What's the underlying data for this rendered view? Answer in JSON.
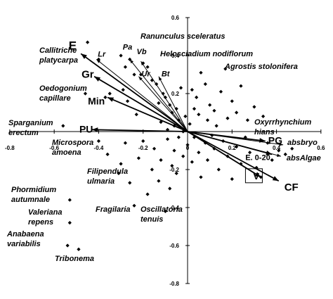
{
  "chart_data": {
    "type": "scatter",
    "title": "",
    "xlabel": "",
    "ylabel": "",
    "xlim": [
      -0.8,
      0.6
    ],
    "ylim": [
      -0.8,
      0.6
    ],
    "x_ticks": [
      "-0.8",
      "-0.6",
      "-0.4",
      "-0.2",
      "0",
      "0.2",
      "0.4",
      "0.6"
    ],
    "y_ticks": [
      "0.6",
      "0.4",
      "0.2",
      "-0.2",
      "-0.4",
      "-0.6",
      "-0.8"
    ],
    "vectors": [
      {
        "label": "E",
        "x": -0.48,
        "y": 0.41
      },
      {
        "label": "Gr",
        "x": -0.42,
        "y": 0.29
      },
      {
        "label": "Min",
        "x": -0.36,
        "y": 0.18
      },
      {
        "label": "PU",
        "x": -0.43,
        "y": 0.01
      },
      {
        "label": "Lr",
        "x": -0.41,
        "y": 0.38
      },
      {
        "label": "Pa",
        "x": -0.26,
        "y": 0.38
      },
      {
        "label": "Vb",
        "x": -0.21,
        "y": 0.37
      },
      {
        "label": "Ur",
        "x": -0.22,
        "y": 0.29
      },
      {
        "label": "Bt",
        "x": -0.13,
        "y": 0.29
      },
      {
        "label": "PG",
        "x": 0.35,
        "y": -0.05
      },
      {
        "label": "E. 0-20",
        "x": 0.38,
        "y": -0.12
      },
      {
        "label": "V",
        "x": 0.33,
        "y": -0.24
      },
      {
        "label": "CF",
        "x": 0.41,
        "y": -0.26
      },
      {
        "label": "absbryo",
        "x": 0.43,
        "y": -0.07
      },
      {
        "label": "absAlgae",
        "x": 0.42,
        "y": -0.13
      }
    ],
    "species": [
      {
        "label": "Ranunculus sceleratus",
        "x": -0.19,
        "y": 0.49
      },
      {
        "label": "Helosciadium nodiflorum",
        "x": -0.12,
        "y": 0.37
      },
      {
        "label": "Agrostis stolonifera",
        "x": 0.17,
        "y": 0.33
      },
      {
        "label": "Callitriche platycarpa",
        "x": -0.48,
        "y": 0.41
      },
      {
        "label": "Oedogonium capillare",
        "x": -0.46,
        "y": 0.2
      },
      {
        "label": "Sparganium erectum",
        "x": -0.56,
        "y": 0.03
      },
      {
        "label": "Microspora amoena",
        "x": -0.4,
        "y": -0.05
      },
      {
        "label": "Oxyrrhynchium hians",
        "x": 0.28,
        "y": 0.04
      },
      {
        "label": "Filipendula ulmaria",
        "x": -0.31,
        "y": -0.22
      },
      {
        "label": "Phormidium autumnale",
        "x": -0.53,
        "y": -0.36
      },
      {
        "label": "Valeriana repens",
        "x": -0.53,
        "y": -0.48
      },
      {
        "label": "Fragilaria",
        "x": -0.24,
        "y": -0.39
      },
      {
        "label": "Oscillatoria tenuis",
        "x": -0.1,
        "y": -0.42
      },
      {
        "label": "Anabaena variabilis",
        "x": -0.54,
        "y": -0.6
      },
      {
        "label": "Tribonema",
        "x": -0.49,
        "y": -0.62
      }
    ],
    "points": [
      {
        "x": -0.45,
        "y": 0.47
      },
      {
        "x": -0.46,
        "y": 0.2
      },
      {
        "x": -0.4,
        "y": 0.38
      },
      {
        "x": -0.35,
        "y": 0.2
      },
      {
        "x": -0.37,
        "y": 0.18
      },
      {
        "x": -0.3,
        "y": 0.4
      },
      {
        "x": -0.29,
        "y": 0.22
      },
      {
        "x": -0.28,
        "y": 0.34
      },
      {
        "x": -0.27,
        "y": 0.16
      },
      {
        "x": -0.26,
        "y": 0.38
      },
      {
        "x": -0.24,
        "y": 0.3
      },
      {
        "x": -0.23,
        "y": 0.09
      },
      {
        "x": -0.21,
        "y": 0.3
      },
      {
        "x": -0.2,
        "y": 0.36
      },
      {
        "x": -0.18,
        "y": 0.34
      },
      {
        "x": -0.16,
        "y": 0.27
      },
      {
        "x": -0.14,
        "y": 0.25
      },
      {
        "x": -0.13,
        "y": 0.15
      },
      {
        "x": -0.12,
        "y": 0.05
      },
      {
        "x": -0.11,
        "y": 0.2
      },
      {
        "x": -0.1,
        "y": 0.18
      },
      {
        "x": -0.09,
        "y": 0.01
      },
      {
        "x": -0.08,
        "y": 0.14
      },
      {
        "x": -0.07,
        "y": 0.1
      },
      {
        "x": -0.06,
        "y": 0.03
      },
      {
        "x": -0.05,
        "y": 0.12
      },
      {
        "x": -0.04,
        "y": 0.06
      },
      {
        "x": -0.03,
        "y": 0.23
      },
      {
        "x": -0.02,
        "y": 0.0
      },
      {
        "x": -0.01,
        "y": 0.08
      },
      {
        "x": 0.01,
        "y": 0.04
      },
      {
        "x": 0.02,
        "y": 0.22
      },
      {
        "x": 0.03,
        "y": 0.12
      },
      {
        "x": 0.04,
        "y": 0.18
      },
      {
        "x": 0.05,
        "y": 0.09
      },
      {
        "x": 0.06,
        "y": 0.31
      },
      {
        "x": 0.08,
        "y": 0.25
      },
      {
        "x": 0.09,
        "y": 0.06
      },
      {
        "x": 0.1,
        "y": 0.14
      },
      {
        "x": 0.12,
        "y": 0.11
      },
      {
        "x": 0.13,
        "y": 0.03
      },
      {
        "x": 0.15,
        "y": 0.21
      },
      {
        "x": 0.17,
        "y": 0.33
      },
      {
        "x": 0.18,
        "y": 0.07
      },
      {
        "x": 0.2,
        "y": 0.16
      },
      {
        "x": 0.22,
        "y": 0.1
      },
      {
        "x": 0.24,
        "y": 0.24
      },
      {
        "x": 0.27,
        "y": 0.06
      },
      {
        "x": 0.3,
        "y": 0.13
      },
      {
        "x": 0.34,
        "y": 0.08
      },
      {
        "x": -0.4,
        "y": -0.05
      },
      {
        "x": -0.36,
        "y": -0.12
      },
      {
        "x": -0.31,
        "y": -0.22
      },
      {
        "x": -0.3,
        "y": -0.17
      },
      {
        "x": -0.28,
        "y": -0.06
      },
      {
        "x": -0.26,
        "y": -0.27
      },
      {
        "x": -0.24,
        "y": -0.39
      },
      {
        "x": -0.22,
        "y": -0.14
      },
      {
        "x": -0.2,
        "y": -0.05
      },
      {
        "x": -0.18,
        "y": -0.33
      },
      {
        "x": -0.16,
        "y": -0.2
      },
      {
        "x": -0.15,
        "y": -0.09
      },
      {
        "x": -0.13,
        "y": -0.26
      },
      {
        "x": -0.12,
        "y": -0.15
      },
      {
        "x": -0.1,
        "y": -0.42
      },
      {
        "x": -0.09,
        "y": -0.04
      },
      {
        "x": -0.08,
        "y": -0.3
      },
      {
        "x": -0.07,
        "y": -0.18
      },
      {
        "x": -0.06,
        "y": -0.1
      },
      {
        "x": -0.05,
        "y": -0.22
      },
      {
        "x": -0.04,
        "y": -0.03
      },
      {
        "x": -0.02,
        "y": -0.13
      },
      {
        "x": 0.0,
        "y": -0.07
      },
      {
        "x": 0.02,
        "y": -0.16
      },
      {
        "x": 0.03,
        "y": -0.03
      },
      {
        "x": 0.05,
        "y": -0.11
      },
      {
        "x": 0.06,
        "y": -0.24
      },
      {
        "x": 0.08,
        "y": -0.06
      },
      {
        "x": 0.09,
        "y": -0.15
      },
      {
        "x": 0.11,
        "y": -0.02
      },
      {
        "x": 0.12,
        "y": -0.09
      },
      {
        "x": 0.14,
        "y": -0.2
      },
      {
        "x": 0.16,
        "y": -0.05
      },
      {
        "x": 0.18,
        "y": -0.13
      },
      {
        "x": 0.2,
        "y": -0.25
      },
      {
        "x": 0.22,
        "y": -0.08
      },
      {
        "x": 0.24,
        "y": -0.17
      },
      {
        "x": 0.26,
        "y": -0.03
      },
      {
        "x": 0.28,
        "y": -0.11
      },
      {
        "x": 0.31,
        "y": -0.19
      },
      {
        "x": 0.33,
        "y": -0.24
      },
      {
        "x": 0.36,
        "y": -0.06
      },
      {
        "x": 0.38,
        "y": -0.15
      },
      {
        "x": 0.41,
        "y": -0.1
      },
      {
        "x": 0.44,
        "y": -0.12
      },
      {
        "x": 0.47,
        "y": -0.09
      },
      {
        "x": -0.53,
        "y": -0.36
      },
      {
        "x": -0.53,
        "y": -0.48
      },
      {
        "x": -0.54,
        "y": -0.6
      },
      {
        "x": -0.49,
        "y": -0.62
      },
      {
        "x": -0.56,
        "y": 0.03
      }
    ],
    "boxed_label": "V",
    "grid": false,
    "legend": "none"
  }
}
